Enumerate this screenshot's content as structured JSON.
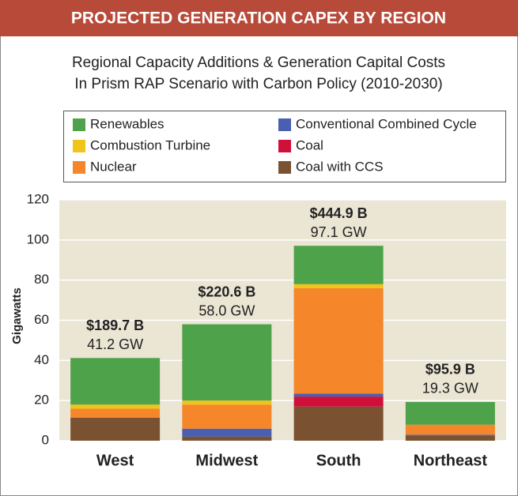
{
  "header": {
    "title": "PROJECTED GENERATION CAPEX BY REGION"
  },
  "chart_data": {
    "type": "bar",
    "stacked": true,
    "title": "Regional Capacity Additions & Generation Capital Costs",
    "subtitle": "In Prism RAP Scenario with Carbon Policy (2010-2030)",
    "y_label": "Gigawatts",
    "categories": [
      "West",
      "Midwest",
      "South",
      "Northeast"
    ],
    "cost_labels": [
      "$189.7 B",
      "$220.6 B",
      "$444.9 B",
      "$95.9 B"
    ],
    "total_labels": [
      "41.2 GW",
      "58.0 GW",
      "97.1 GW",
      "19.3 GW"
    ],
    "series": [
      {
        "name": "Coal with CCS",
        "color": "#7a5232",
        "values": [
          11.5,
          2,
          17,
          2.5
        ]
      },
      {
        "name": "Coal",
        "color": "#d0103a",
        "values": [
          0,
          0,
          5,
          0
        ]
      },
      {
        "name": "Conventional Combined Cycle",
        "color": "#4a5fb0",
        "values": [
          0,
          4,
          1.5,
          0.5
        ]
      },
      {
        "name": "Nuclear",
        "color": "#f5862a",
        "values": [
          4.5,
          12,
          52.5,
          5
        ]
      },
      {
        "name": "Combustion Turbine",
        "color": "#f0c419",
        "values": [
          2,
          2,
          2,
          0
        ]
      },
      {
        "name": "Renewables",
        "color": "#4ea24a",
        "values": [
          23.2,
          38,
          19.1,
          11.3
        ]
      }
    ],
    "ylim": [
      0,
      120
    ],
    "yticks": [
      0,
      20,
      40,
      60,
      80,
      100,
      120
    ],
    "grid": true
  }
}
